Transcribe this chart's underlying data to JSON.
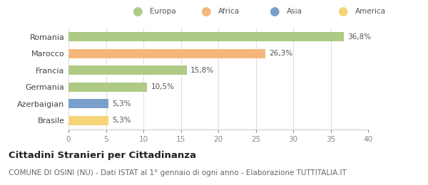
{
  "categories": [
    "Brasile",
    "Azerbaigian",
    "Germania",
    "Francia",
    "Marocco",
    "Romania"
  ],
  "values": [
    5.3,
    5.3,
    10.5,
    15.8,
    26.3,
    36.8
  ],
  "bar_colors": [
    "#F5D47A",
    "#7A9FCC",
    "#AECA85",
    "#AECA85",
    "#F5B87A",
    "#AECA85"
  ],
  "bar_labels": [
    "5,3%",
    "5,3%",
    "10,5%",
    "15,8%",
    "26,3%",
    "36,8%"
  ],
  "xlim": [
    0,
    40
  ],
  "xticks": [
    0,
    5,
    10,
    15,
    20,
    25,
    30,
    35,
    40
  ],
  "legend_labels": [
    "Europa",
    "Africa",
    "Asia",
    "America"
  ],
  "legend_colors": [
    "#AECA85",
    "#F5B87A",
    "#7A9FCC",
    "#F5D47A"
  ],
  "title": "Cittadini Stranieri per Cittadinanza",
  "subtitle": "COMUNE DI OSINI (NU) - Dati ISTAT al 1° gennaio di ogni anno - Elaborazione TUTTITALIA.IT",
  "background_color": "#ffffff",
  "grid_color": "#e0e0e0",
  "title_fontsize": 9.5,
  "subtitle_fontsize": 7.5,
  "label_fontsize": 7.5,
  "tick_fontsize": 7.5,
  "ylabel_fontsize": 8
}
